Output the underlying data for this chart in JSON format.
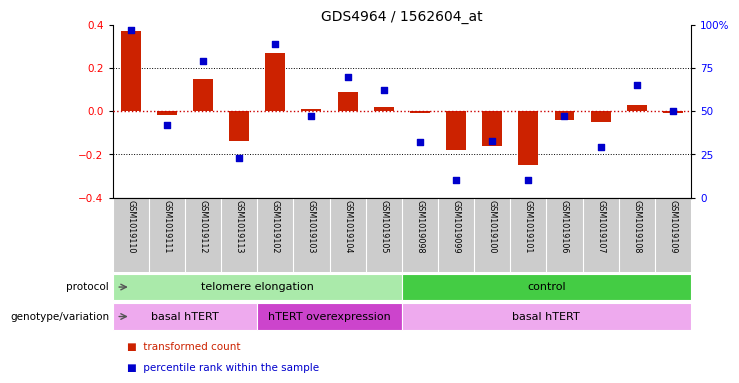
{
  "title": "GDS4964 / 1562604_at",
  "samples": [
    "GSM1019110",
    "GSM1019111",
    "GSM1019112",
    "GSM1019113",
    "GSM1019102",
    "GSM1019103",
    "GSM1019104",
    "GSM1019105",
    "GSM1019098",
    "GSM1019099",
    "GSM1019100",
    "GSM1019101",
    "GSM1019106",
    "GSM1019107",
    "GSM1019108",
    "GSM1019109"
  ],
  "bar_values": [
    0.37,
    -0.02,
    0.15,
    -0.14,
    0.27,
    0.01,
    0.09,
    0.02,
    -0.01,
    -0.18,
    -0.16,
    -0.25,
    -0.04,
    -0.05,
    0.03,
    -0.01
  ],
  "dot_values": [
    97,
    42,
    79,
    23,
    89,
    47,
    70,
    62,
    32,
    10,
    33,
    10,
    47,
    29,
    65,
    50
  ],
  "ylim_left": [
    -0.4,
    0.4
  ],
  "ylim_right": [
    0,
    100
  ],
  "yticks_left": [
    -0.4,
    -0.2,
    0.0,
    0.2,
    0.4
  ],
  "yticks_right": [
    0,
    25,
    50,
    75,
    100
  ],
  "ytick_labels_right": [
    "0",
    "25",
    "50",
    "75",
    "100%"
  ],
  "bar_color": "#cc2200",
  "dot_color": "#0000cc",
  "zero_line_color": "#cc0000",
  "grid_color": "#000000",
  "protocol_labels": [
    {
      "label": "telomere elongation",
      "start": 0,
      "end": 8,
      "color": "#aaeaaa"
    },
    {
      "label": "control",
      "start": 8,
      "end": 16,
      "color": "#44cc44"
    }
  ],
  "genotype_labels": [
    {
      "label": "basal hTERT",
      "start": 0,
      "end": 4,
      "color": "#eeaaee"
    },
    {
      "label": "hTERT overexpression",
      "start": 4,
      "end": 8,
      "color": "#cc44cc"
    },
    {
      "label": "basal hTERT",
      "start": 8,
      "end": 16,
      "color": "#eeaaee"
    }
  ],
  "legend_items": [
    {
      "label": "transformed count",
      "color": "#cc2200"
    },
    {
      "label": "percentile rank within the sample",
      "color": "#0000cc"
    }
  ],
  "bg_color": "#ffffff",
  "plot_bg": "#ffffff",
  "label_row1": "protocol",
  "label_row2": "genotype/variation",
  "sample_bg": "#cccccc",
  "sample_sep_color": "#ffffff"
}
